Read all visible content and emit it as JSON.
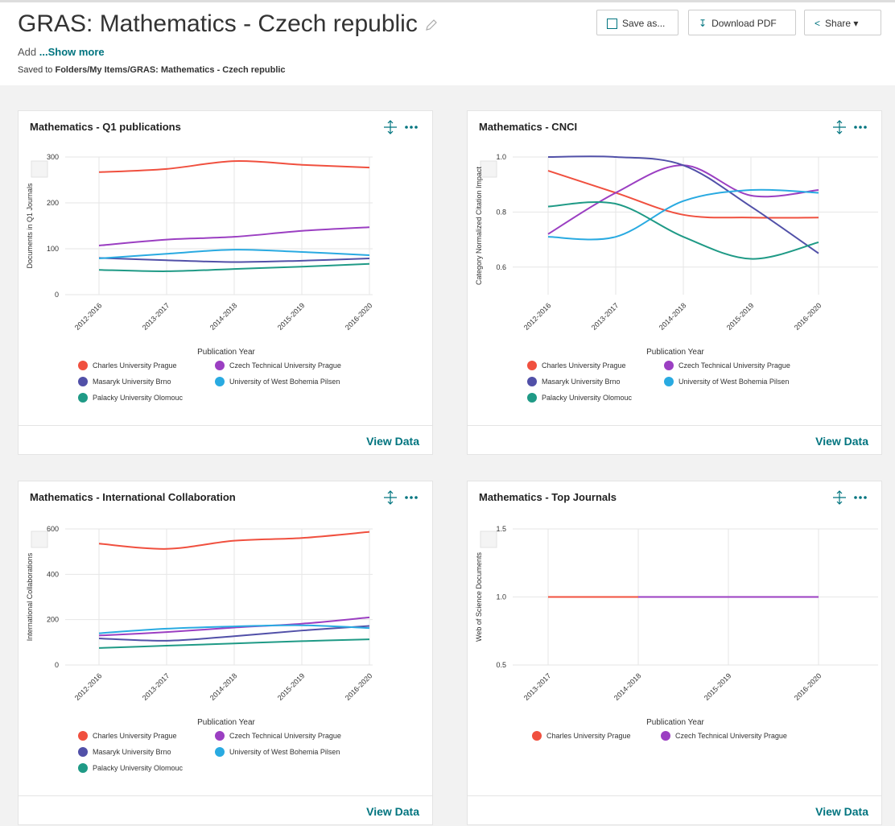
{
  "header": {
    "title": "GRAS: Mathematics - Czech republic",
    "add": "Add",
    "show_more": "...Show more",
    "saved_prefix": "Saved to",
    "saved_path": "Folders/My Items/GRAS: Mathematics - Czech republic",
    "buttons": [
      "Save as...",
      "Download PDF",
      "Share"
    ]
  },
  "chart_data": [
    {
      "type": "line",
      "title": "Mathematics - Q1 publications",
      "x_label": "Publication Year",
      "y_label": "Documents in Q1 Journals",
      "action": "View Data",
      "categories": [
        "2012-2016",
        "2013-2017",
        "2014-2018",
        "2015-2019",
        "2016-2020"
      ],
      "ylim": [
        0,
        300
      ],
      "yticks": [
        0,
        100,
        200,
        300
      ],
      "grid": true,
      "series": [
        {
          "name": "Charles University Prague",
          "color": "#f0503f",
          "values": [
            267,
            274,
            291,
            283,
            277
          ]
        },
        {
          "name": "Czech Technical University Prague",
          "color": "#9b3fc2",
          "values": [
            107,
            120,
            126,
            139,
            147
          ]
        },
        {
          "name": "Masaryk University Brno",
          "color": "#5150a8",
          "values": [
            80,
            75,
            71,
            74,
            79
          ]
        },
        {
          "name": "University of West Bohemia Pilsen",
          "color": "#29aae1",
          "values": [
            79,
            89,
            98,
            93,
            86
          ]
        },
        {
          "name": "Palacky University Olomouc",
          "color": "#1f9a86",
          "values": [
            54,
            51,
            56,
            61,
            67
          ]
        }
      ]
    },
    {
      "type": "line",
      "title": "Mathematics - CNCI",
      "x_label": "Publication Year",
      "y_label": "Category Normalized Citation Impact",
      "action": "View Data",
      "categories": [
        "2012-2016",
        "2013-2017",
        "2014-2018",
        "2015-2019",
        "2016-2020"
      ],
      "ylim": [
        0.5,
        1.0
      ],
      "yticks": [
        0.6,
        0.8,
        {
          "value": 1,
          "label": "1.0"
        }
      ],
      "grid": true,
      "series": [
        {
          "name": "Charles University Prague",
          "color": "#f0503f",
          "values": [
            0.95,
            0.87,
            0.79,
            0.78,
            0.78
          ]
        },
        {
          "name": "Czech Technical University Prague",
          "color": "#9b3fc2",
          "values": [
            0.72,
            0.87,
            0.97,
            0.86,
            0.88
          ]
        },
        {
          "name": "Masaryk University Brno",
          "color": "#5150a8",
          "values": [
            1.0,
            1.0,
            0.97,
            0.82,
            0.65
          ]
        },
        {
          "name": "University of West Bohemia Pilsen",
          "color": "#29aae1",
          "values": [
            0.71,
            0.71,
            0.84,
            0.88,
            0.87
          ]
        },
        {
          "name": "Palacky University Olomouc",
          "color": "#1f9a86",
          "values": [
            0.82,
            0.83,
            0.71,
            0.63,
            0.69
          ]
        }
      ]
    },
    {
      "type": "line",
      "title": "Mathematics - International Collaboration",
      "x_label": "Publication Year",
      "y_label": "International Collaborations",
      "action": "View Data",
      "categories": [
        "2012-2016",
        "2013-2017",
        "2014-2018",
        "2015-2019",
        "2016-2020"
      ],
      "ylim": [
        0,
        600
      ],
      "yticks": [
        0,
        200,
        400,
        600
      ],
      "grid": true,
      "series": [
        {
          "name": "Charles University Prague",
          "color": "#f0503f",
          "values": [
            535,
            512,
            548,
            560,
            587
          ]
        },
        {
          "name": "Czech Technical University Prague",
          "color": "#9b3fc2",
          "values": [
            130,
            145,
            165,
            182,
            210
          ]
        },
        {
          "name": "Masaryk University Brno",
          "color": "#5150a8",
          "values": [
            117,
            107,
            127,
            152,
            172
          ]
        },
        {
          "name": "University of West Bohemia Pilsen",
          "color": "#29aae1",
          "values": [
            140,
            160,
            170,
            175,
            163
          ]
        },
        {
          "name": "Palacky University Olomouc",
          "color": "#1f9a86",
          "values": [
            75,
            85,
            95,
            105,
            113
          ]
        }
      ]
    },
    {
      "type": "line",
      "title": "Mathematics - Top Journals",
      "x_label": "Publication Year",
      "y_label": "Web of Science Documents",
      "action": "View Data",
      "categories": [
        "2013-2017",
        "2014-2018",
        "2015-2019",
        "2016-2020"
      ],
      "ylim": [
        0.5,
        1.5
      ],
      "yticks": [
        0.5,
        {
          "value": 1,
          "label": "1.0"
        },
        1.5
      ],
      "grid": true,
      "series": [
        {
          "name": "Charles University Prague",
          "color": "#f0503f",
          "values": [
            1,
            1,
            null,
            null
          ]
        },
        {
          "name": "Czech Technical University Prague",
          "color": "#9b3fc2",
          "values": [
            null,
            1,
            1,
            1
          ]
        }
      ]
    }
  ]
}
